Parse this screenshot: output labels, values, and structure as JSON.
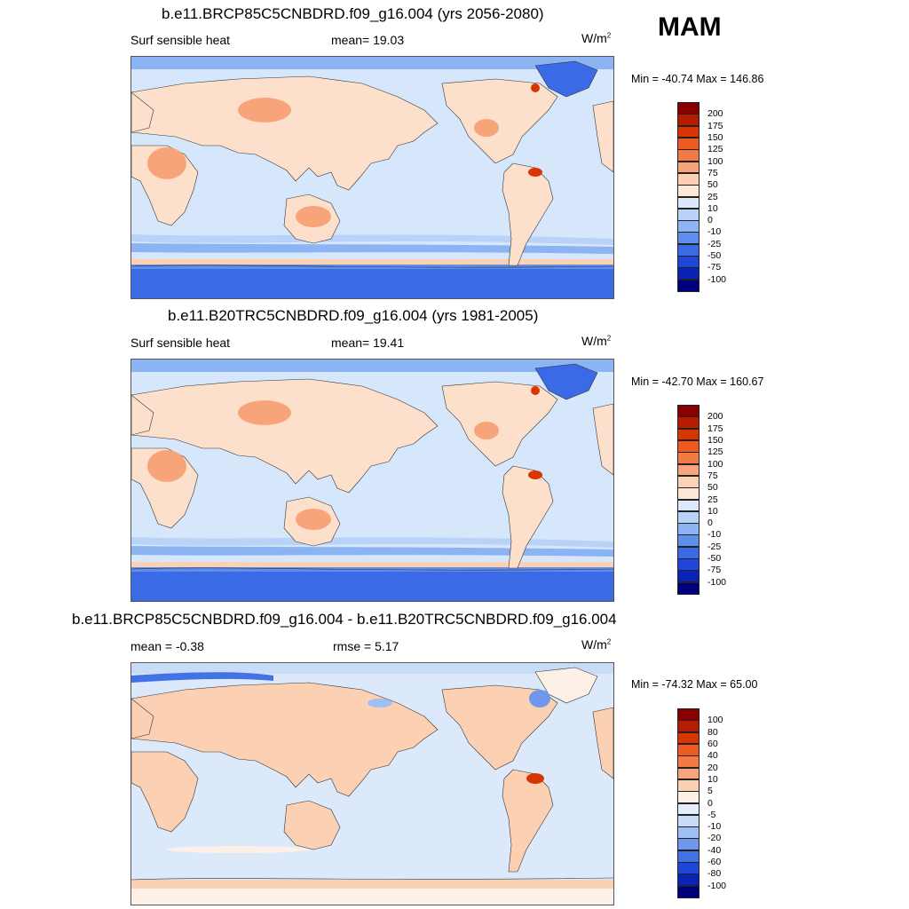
{
  "season": "MAM",
  "panels": [
    {
      "title": "b.e11.BRCP85C5CNBDRD.f09_g16.004 (yrs 2056-2080)",
      "left_label": "Surf sensible heat",
      "center_label": "mean=  19.03",
      "units": "W/m",
      "units_sup": "2",
      "minmax": "Min = -40.74 Max = 146.86"
    },
    {
      "title": "b.e11.B20TRC5CNBDRD.f09_g16.004 (yrs 1981-2005)",
      "left_label": "Surf sensible heat",
      "center_label": "mean=  19.41",
      "units": "W/m",
      "units_sup": "2",
      "minmax": "Min = -42.70 Max = 160.67"
    },
    {
      "title": "b.e11.BRCP85C5CNBDRD.f09_g16.004 - b.e11.B20TRC5CNBDRD.f09_g16.004",
      "left_label": "mean =  -0.38",
      "center_label": "rmse =   5.17",
      "units": "W/m",
      "units_sup": "2",
      "minmax": "Min = -74.32 Max =  65.00"
    }
  ],
  "chart_data": [
    {
      "type": "heatmap",
      "title": "b.e11.BRCP85C5CNBDRD.f09_g16.004 (yrs 2056-2080)",
      "variable": "Surf sensible heat",
      "season": "MAM",
      "mean": 19.03,
      "min": -40.74,
      "max": 146.86,
      "units": "W/m2",
      "colorbar_levels": [
        "200",
        "175",
        "150",
        "125",
        "100",
        "75",
        "50",
        "25",
        "10",
        "0",
        "-10",
        "-25",
        "-50",
        "-75",
        "-100"
      ],
      "colors": [
        "#8a0000",
        "#b51c00",
        "#d93500",
        "#ee5a20",
        "#f47a45",
        "#f8a47a",
        "#fcd0b3",
        "#fde8d8",
        "#dbe9fb",
        "#b8d2f8",
        "#8cb3f2",
        "#5f8fec",
        "#3a6ae6",
        "#1f45d9",
        "#0a22b6",
        "#00007f"
      ]
    },
    {
      "type": "heatmap",
      "title": "b.e11.B20TRC5CNBDRD.f09_g16.004 (yrs 1981-2005)",
      "variable": "Surf sensible heat",
      "season": "MAM",
      "mean": 19.41,
      "min": -42.7,
      "max": 160.67,
      "units": "W/m2",
      "colorbar_levels": [
        "200",
        "175",
        "150",
        "125",
        "100",
        "75",
        "50",
        "25",
        "10",
        "0",
        "-10",
        "-25",
        "-50",
        "-75",
        "-100"
      ],
      "colors": [
        "#8a0000",
        "#b51c00",
        "#d93500",
        "#ee5a20",
        "#f47a45",
        "#f8a47a",
        "#fcd0b3",
        "#fde8d8",
        "#dbe9fb",
        "#b8d2f8",
        "#8cb3f2",
        "#5f8fec",
        "#3a6ae6",
        "#1f45d9",
        "#0a22b6",
        "#00007f"
      ]
    },
    {
      "type": "heatmap",
      "title": "b.e11.BRCP85C5CNBDRD.f09_g16.004 - b.e11.B20TRC5CNBDRD.f09_g16.004",
      "mean": -0.38,
      "rmse": 5.17,
      "min": -74.32,
      "max": 65.0,
      "units": "W/m2",
      "colorbar_levels": [
        "100",
        "80",
        "60",
        "40",
        "20",
        "10",
        "5",
        "0",
        "-5",
        "-10",
        "-20",
        "-40",
        "-60",
        "-80",
        "-100"
      ],
      "colors": [
        "#8a0000",
        "#b51c00",
        "#d93500",
        "#ee5a20",
        "#f47a45",
        "#f8a47a",
        "#fcd0b3",
        "#fdf0e6",
        "#e4eefb",
        "#c8dcf8",
        "#9fc0f3",
        "#6f98ec",
        "#4272e4",
        "#1f45d9",
        "#0a22b6",
        "#00007f"
      ]
    }
  ]
}
